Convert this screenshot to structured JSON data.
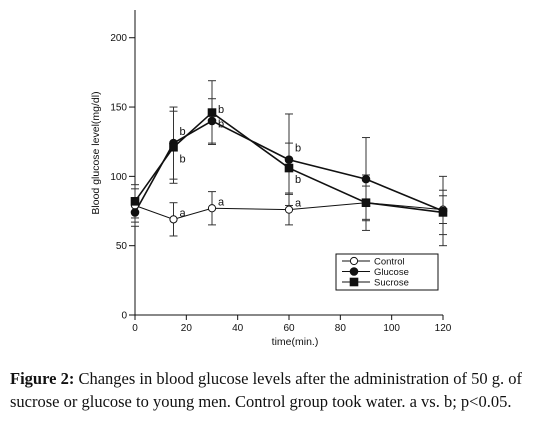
{
  "chart_data": {
    "type": "line",
    "xlabel": "time(min.)",
    "ylabel": "Blood glucose level(mg/dl)",
    "xlim": [
      0,
      120
    ],
    "ylim": [
      0,
      220
    ],
    "xticks": [
      0,
      20,
      40,
      60,
      80,
      100,
      120
    ],
    "yticks": [
      0,
      50,
      100,
      150,
      200
    ],
    "grid": false,
    "legend_position": "bottom-right",
    "series": [
      {
        "name": "Control",
        "marker": "open-circle",
        "x": [
          0,
          15,
          30,
          60,
          90,
          120
        ],
        "y": [
          79,
          69,
          77,
          76,
          81,
          76
        ],
        "err": [
          12,
          12,
          12,
          11,
          12,
          10
        ],
        "labels": [
          "",
          "a",
          "a",
          "a",
          "",
          ""
        ]
      },
      {
        "name": "Glucose",
        "marker": "filled-circle",
        "x": [
          0,
          15,
          30,
          60,
          90,
          120
        ],
        "y": [
          74,
          124,
          140,
          112,
          98,
          75
        ],
        "err": [
          10,
          26,
          16,
          33,
          30,
          25
        ],
        "labels": [
          "",
          "b",
          "b",
          "b",
          "",
          ""
        ]
      },
      {
        "name": "Sucrose",
        "marker": "filled-square",
        "x": [
          0,
          15,
          30,
          60,
          90,
          120
        ],
        "y": [
          82,
          121,
          146,
          106,
          81,
          74
        ],
        "err": [
          12,
          26,
          23,
          18,
          20,
          16
        ],
        "labels": [
          "",
          "b",
          "b",
          "b",
          "",
          ""
        ]
      }
    ]
  },
  "caption": {
    "label": "Figure 2:",
    "text": " Changes in blood glucose levels after the administration of 50 g. of sucrose or glucose to young men. Control group took water. a vs. b; p<0.05."
  }
}
